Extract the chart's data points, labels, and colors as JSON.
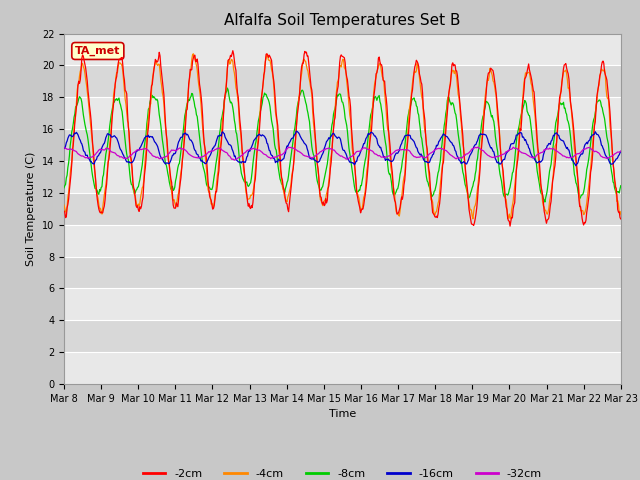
{
  "title": "Alfalfa Soil Temperatures Set B",
  "xlabel": "Time",
  "ylabel": "Soil Temperature (C)",
  "ylim": [
    0,
    22
  ],
  "yticks": [
    0,
    2,
    4,
    6,
    8,
    10,
    12,
    14,
    16,
    18,
    20,
    22
  ],
  "colors": {
    "-2cm": "#ff0000",
    "-4cm": "#ff8800",
    "-8cm": "#00cc00",
    "-16cm": "#0000cc",
    "-32cm": "#cc00cc"
  },
  "legend_labels": [
    "-2cm",
    "-4cm",
    "-8cm",
    "-16cm",
    "-32cm"
  ],
  "annotation_text": "TA_met",
  "annotation_color": "#cc0000",
  "annotation_bg": "#ffffcc",
  "background_outer": "#c8c8c8",
  "background_band_light": "#e8e8e8",
  "background_band_dark": "#d8d8d8",
  "title_fontsize": 11,
  "axis_label_fontsize": 8,
  "tick_fontsize": 7,
  "legend_fontsize": 8,
  "n_days": 15,
  "pts_per_day": 48
}
